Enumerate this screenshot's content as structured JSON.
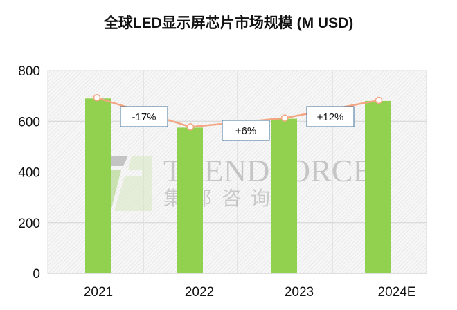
{
  "chart_data": {
    "type": "bar",
    "title": "全球LED显示屏芯片市场规模 (M USD)",
    "categories": [
      "2021",
      "2022",
      "2023",
      "2024E"
    ],
    "series": [
      {
        "type": "bar",
        "values": [
          690,
          575,
          610,
          680
        ],
        "color": "#92d050"
      },
      {
        "type": "line",
        "values": [
          690,
          575,
          610,
          680
        ],
        "color": "#f4a582"
      }
    ],
    "annotations": [
      "-17%",
      "+6%",
      "+12%"
    ],
    "ylim": [
      0,
      800
    ],
    "yticks": [
      "0",
      "200",
      "400",
      "600",
      "800"
    ],
    "grid": true,
    "watermark": {
      "text": "TRENDFORCE",
      "subtext": "集邦咨询"
    }
  }
}
